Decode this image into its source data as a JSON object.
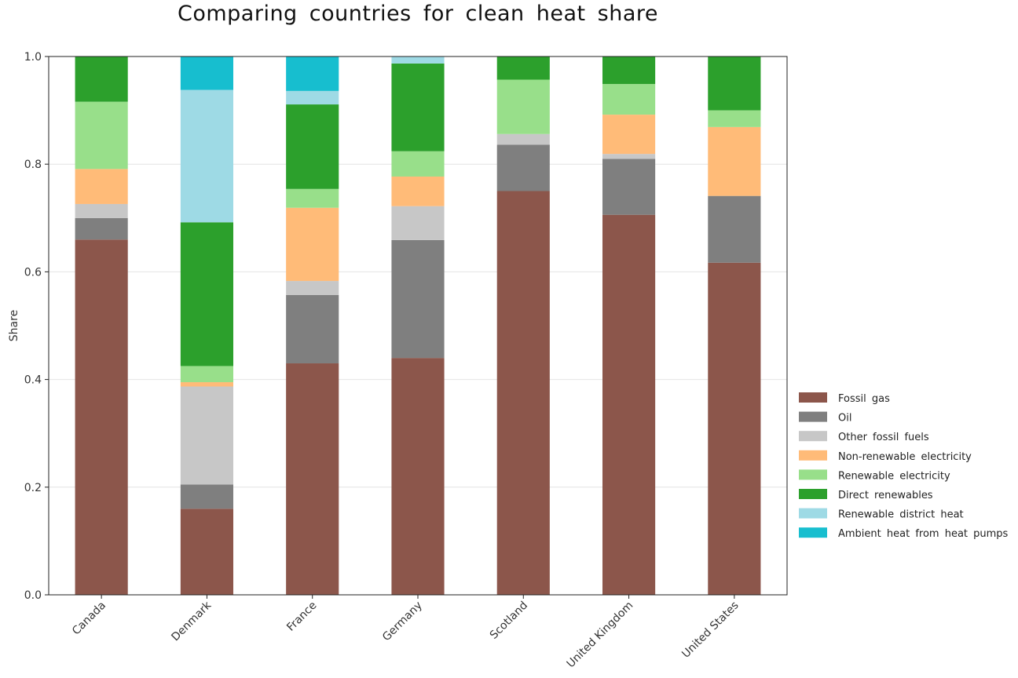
{
  "chart_data": {
    "type": "bar",
    "stacked": true,
    "title": "Comparing countries for clean heat share",
    "xlabel": "",
    "ylabel": "Share",
    "ylim": [
      0,
      1
    ],
    "yticks": [
      "0.0",
      "0.2",
      "0.4",
      "0.6",
      "0.8",
      "1.0"
    ],
    "grid": "horizontal",
    "legend_position": "right",
    "categories": [
      "Canada",
      "Denmark",
      "France",
      "Germany",
      "Scotland",
      "United Kingdom",
      "United States"
    ],
    "series": [
      {
        "name": "Fossil gas",
        "color": "#8c564b",
        "values": [
          0.66,
          0.16,
          0.43,
          0.44,
          0.75,
          0.706,
          0.617
        ]
      },
      {
        "name": "Oil",
        "color": "#7f7f7f",
        "values": [
          0.04,
          0.045,
          0.127,
          0.219,
          0.086,
          0.104,
          0.124
        ]
      },
      {
        "name": "Other fossil fuels",
        "color": "#c7c7c7",
        "values": [
          0.026,
          0.182,
          0.026,
          0.063,
          0.02,
          0.009,
          0.0
        ]
      },
      {
        "name": "Non-renewable electricity",
        "color": "#ffbb78",
        "values": [
          0.065,
          0.008,
          0.136,
          0.055,
          0.0,
          0.073,
          0.128
        ]
      },
      {
        "name": "Renewable electricity",
        "color": "#98df8a",
        "values": [
          0.125,
          0.03,
          0.035,
          0.047,
          0.101,
          0.057,
          0.031
        ]
      },
      {
        "name": "Direct renewables",
        "color": "#2ca02c",
        "values": [
          0.084,
          0.267,
          0.157,
          0.163,
          0.043,
          0.051,
          0.1
        ]
      },
      {
        "name": "Renewable district heat",
        "color": "#9edae5",
        "values": [
          0.0,
          0.246,
          0.025,
          0.013,
          0.0,
          0.0,
          0.0
        ]
      },
      {
        "name": "Ambient heat from heat pumps",
        "color": "#17becf",
        "values": [
          0.0,
          0.062,
          0.064,
          0.0,
          0.0,
          0.0,
          0.0
        ]
      }
    ]
  }
}
